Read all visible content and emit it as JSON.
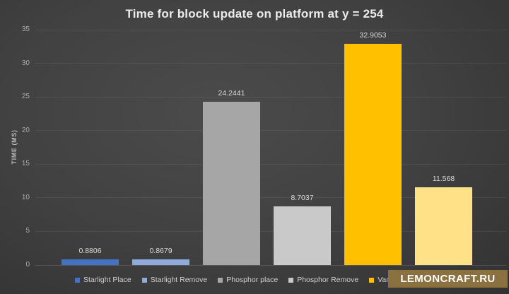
{
  "watermark": {
    "text": "LEMONCRAFT.RU",
    "bg_color": "#8C7140",
    "text_color": "#FFFFFF"
  },
  "chart_data": {
    "type": "bar",
    "title": "Time for block update on platform at y = 254",
    "xlabel": "",
    "ylabel": "TIME (MS)",
    "ylim": [
      0,
      35
    ],
    "yticks": [
      0,
      5,
      10,
      15,
      20,
      25,
      30,
      35
    ],
    "grid": "horizontal",
    "legend_position": "bottom",
    "background": "dark-gray-radial-gradient",
    "series": [
      {
        "name": "Starlight Place",
        "value": 0.8806,
        "data_label": "0.8806",
        "color": "#4472C4"
      },
      {
        "name": "Starlight Remove",
        "value": 0.8679,
        "data_label": "0.8679",
        "color": "#8FAADC"
      },
      {
        "name": "Phosphor place",
        "value": 24.2441,
        "data_label": "24.2441",
        "color": "#A6A6A6"
      },
      {
        "name": "Phosphor Remove",
        "value": 8.7037,
        "data_label": "8.7037",
        "color": "#C9C9C9"
      },
      {
        "name": "Vanilla place",
        "value": 32.9053,
        "data_label": "32.9053",
        "color": "#FFC000"
      },
      {
        "name": "",
        "value": 11.568,
        "data_label": "11.568",
        "color": "#FFE187",
        "legend_label_obscured_by_watermark": true
      }
    ]
  }
}
